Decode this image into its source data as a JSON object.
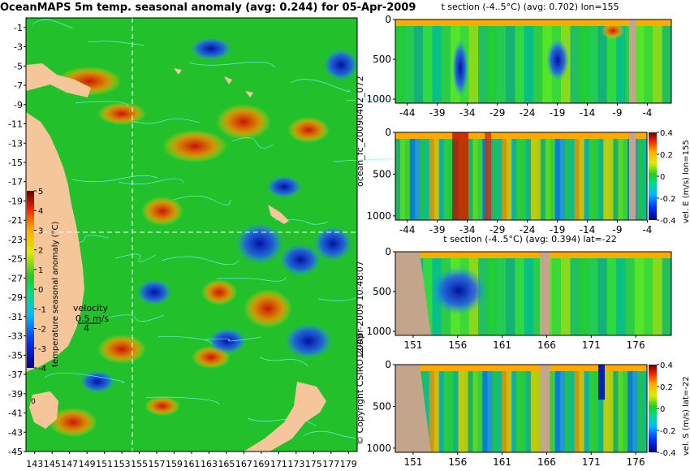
{
  "title": "OceanMAPS 5m temp. seasonal anomaly (avg: 0.244) for 05-Apr-2009",
  "side_text": {
    "run": "ocean_fc_20090402_072",
    "date": "12-Apr-2009 10:48:07",
    "copyright": "© Copyright CSIRO 2009"
  },
  "colors": {
    "land": "#f6c69b",
    "contour": "#66ffff",
    "section_land": "#c2a58a",
    "guide_line": "#ffffff"
  },
  "chart_data": [
    {
      "type": "heatmap",
      "id": "map",
      "title": "OceanMAPS 5m temp. seasonal anomaly (avg: 0.244) for 05-Apr-2009",
      "x_ticks": [
        "143",
        "145",
        "147",
        "149",
        "151",
        "153",
        "155",
        "157",
        "159",
        "161",
        "163",
        "165",
        "167",
        "169",
        "171",
        "173",
        "175",
        "177",
        "179"
      ],
      "y_ticks": [
        "-1",
        "-3",
        "-5",
        "-7",
        "-9",
        "-11",
        "-13",
        "-15",
        "-17",
        "-19",
        "-21",
        "-23",
        "-25",
        "-27",
        "-29",
        "-31",
        "-33",
        "-35",
        "-37",
        "-39",
        "-41",
        "-43",
        "-45"
      ],
      "xlim": [
        142,
        180
      ],
      "ylim": [
        -45,
        0
      ],
      "section_lines": {
        "lon": 155,
        "lat": -22
      },
      "colorbar": {
        "label": "temperature seasonal anomaly (°C)",
        "ticks": [
          "5",
          "4",
          "3",
          "2",
          "1",
          "0",
          "-1",
          "-2",
          "-3",
          "-4"
        ],
        "range": [
          -4,
          5
        ]
      },
      "velocity_legend": {
        "title": "velocity",
        "scale": "0.5 m/s",
        "value": "4"
      },
      "map_label": "0"
    },
    {
      "type": "heatmap",
      "id": "sec_t_lon",
      "title": "t section (-4..5°C) (avg: 0.702) lon=155",
      "x_ticks": [
        "-44",
        "-39",
        "-34",
        "-29",
        "-24",
        "-19",
        "-14",
        "-9",
        "-4"
      ],
      "y_ticks": [
        "0",
        "500",
        "1000"
      ],
      "xlim": [
        -46,
        0
      ],
      "ylim": [
        1050,
        0
      ]
    },
    {
      "type": "heatmap",
      "id": "sec_u_lon",
      "title": "",
      "x_ticks": [
        "-44",
        "-39",
        "-34",
        "-29",
        "-24",
        "-19",
        "-14",
        "-9",
        "-4"
      ],
      "y_ticks": [
        "0",
        "500",
        "1000"
      ],
      "xlim": [
        -46,
        0
      ],
      "ylim": [
        1050,
        0
      ],
      "colorbar": {
        "label": "vel. E (m/s) lon=155",
        "ticks": [
          "0.4",
          "0.2",
          "0",
          "-0.2",
          "-0.4"
        ],
        "range": [
          -0.4,
          0.4
        ]
      }
    },
    {
      "type": "heatmap",
      "id": "sec_t_lat",
      "title": "t section (-4..5°C) (avg: 0.394) lat=-22",
      "x_ticks": [
        "151",
        "156",
        "161",
        "166",
        "171",
        "176"
      ],
      "y_ticks": [
        "0",
        "500",
        "1000"
      ],
      "xlim": [
        149,
        180
      ],
      "ylim": [
        1050,
        0
      ]
    },
    {
      "type": "heatmap",
      "id": "sec_v_lat",
      "title": "",
      "x_ticks": [
        "151",
        "156",
        "161",
        "166",
        "171",
        "176"
      ],
      "y_ticks": [
        "0",
        "500",
        "1000"
      ],
      "xlim": [
        149,
        180
      ],
      "ylim": [
        1050,
        0
      ],
      "colorbar": {
        "label": "vel. S (m/s) lat=-22",
        "ticks": [
          "0.4",
          "0.2",
          "0",
          "-0.2",
          "-0.4"
        ],
        "range": [
          -0.4,
          0.4
        ]
      }
    }
  ]
}
